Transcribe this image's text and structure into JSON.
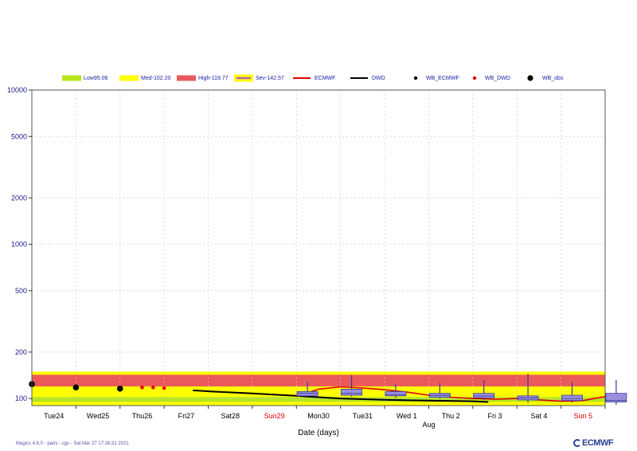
{
  "chart_data": {
    "type": "line",
    "xlabel": "Date (days)",
    "x_ticks": [
      {
        "label": "Tue24",
        "weekend": false
      },
      {
        "label": "Wed25",
        "weekend": false
      },
      {
        "label": "Thu26",
        "weekend": false
      },
      {
        "label": "Fri27",
        "weekend": false
      },
      {
        "label": "Sat28",
        "weekend": false
      },
      {
        "label": "Sun29",
        "weekend": true
      },
      {
        "label": "Mon30",
        "weekend": false
      },
      {
        "label": "Tue31",
        "weekend": false
      },
      {
        "label": "Wed 1",
        "weekend": false
      },
      {
        "label": "Thu 2",
        "weekend": false
      },
      {
        "label": "Fri 3",
        "weekend": false
      },
      {
        "label": "Sat 4",
        "weekend": false
      },
      {
        "label": "Sun 5",
        "weekend": true
      }
    ],
    "month_label": {
      "text": "Aug",
      "day": 8.5
    },
    "y_scale": "log",
    "ylim": [
      90,
      10000
    ],
    "y_ticks": [
      100,
      200,
      500,
      1000,
      2000,
      5000,
      10000
    ],
    "xlim": [
      -0.5,
      12.5
    ],
    "grid": true,
    "legend": [
      {
        "label": "Low95.06",
        "kind": "band",
        "color": "#b5e61d"
      },
      {
        "label": "Med-102.20",
        "kind": "band",
        "color": "#ffff00"
      },
      {
        "label": "High-119.77",
        "kind": "band",
        "color": "#eb5a5a"
      },
      {
        "label": "Sev-142.57",
        "kind": "sev",
        "color": "#ffff00"
      },
      {
        "label": "ECMWF",
        "kind": "line",
        "color": "#e00000"
      },
      {
        "label": "DWD",
        "kind": "line",
        "color": "#000000"
      },
      {
        "label": "WB_ECMWF",
        "kind": "dot",
        "color": "#000000"
      },
      {
        "label": "WB_DWD",
        "kind": "dot",
        "color": "#e00000"
      },
      {
        "label": "WB_obs",
        "kind": "bigdot",
        "color": "#000000"
      }
    ],
    "thresholds": {
      "low": 95.06,
      "medium": 102.2,
      "high": 119.77,
      "severe": 142.57
    },
    "threshold_colors": {
      "low": "#b5e61d",
      "medium": "#ffff00",
      "high": "#eb5a5a",
      "severe_border": "#ffff00"
    },
    "series": [
      {
        "name": "WB_obs",
        "kind": "bigdot",
        "color": "#000000",
        "points": [
          [
            -0.5,
            124
          ],
          [
            0.5,
            118
          ],
          [
            1.5,
            116
          ]
        ]
      },
      {
        "name": "WB_DWD",
        "kind": "dot",
        "color": "#e00000",
        "points": [
          [
            2.0,
            118
          ],
          [
            2.25,
            118
          ],
          [
            2.5,
            117
          ]
        ]
      },
      {
        "name": "DWD",
        "kind": "line",
        "color": "#000000",
        "points": [
          [
            3.15,
            113
          ],
          [
            3.6,
            111
          ],
          [
            4.5,
            108
          ],
          [
            5.5,
            104
          ],
          [
            6.5,
            100
          ],
          [
            7.5,
            98
          ],
          [
            8.5,
            97
          ],
          [
            9.5,
            96
          ],
          [
            9.85,
            95
          ]
        ]
      },
      {
        "name": "ECMWF",
        "kind": "line",
        "color": "#e00000",
        "points": [
          [
            5.5,
            103
          ],
          [
            6.0,
            115
          ],
          [
            6.5,
            119
          ],
          [
            7.0,
            117
          ],
          [
            7.5,
            114
          ],
          [
            8.0,
            110
          ],
          [
            8.5,
            105
          ],
          [
            9.0,
            102
          ],
          [
            9.5,
            100
          ],
          [
            10.0,
            99
          ],
          [
            10.5,
            100
          ],
          [
            11.0,
            98
          ],
          [
            11.5,
            96
          ],
          [
            12.0,
            97
          ],
          [
            12.5,
            103
          ]
        ]
      }
    ],
    "boxes": [
      {
        "x": 5.75,
        "min": 103,
        "q1": 104,
        "median": 108,
        "q3": 111,
        "max": 128
      },
      {
        "x": 6.75,
        "min": 103,
        "q1": 105,
        "median": 108,
        "q3": 115,
        "max": 142
      },
      {
        "x": 7.75,
        "min": 101,
        "q1": 104,
        "median": 106,
        "q3": 111,
        "max": 124
      },
      {
        "x": 8.75,
        "min": 100,
        "q1": 102,
        "median": 105,
        "q3": 108,
        "max": 126
      },
      {
        "x": 9.75,
        "min": 98,
        "q1": 101,
        "median": 104,
        "q3": 108,
        "max": 132
      },
      {
        "x": 10.75,
        "min": 94,
        "q1": 98,
        "median": 101,
        "q3": 104,
        "max": 145
      },
      {
        "x": 11.75,
        "min": 94,
        "q1": 97,
        "median": 100,
        "q3": 105,
        "max": 128
      },
      {
        "x": 12.75,
        "min": 91,
        "q1": 95,
        "median": 97,
        "q3": 108,
        "max": 132
      }
    ]
  },
  "footer": "Magics 4.6.0 - paris - cgs - Sat Mar 27 17:26:31 2021",
  "logo_text": "ECMWF",
  "colors": {
    "axis_text": "#1a1a8c",
    "box_fill": "#9b8fdc",
    "box_stroke": "#3a3a9a",
    "grid": "#cccccc"
  }
}
